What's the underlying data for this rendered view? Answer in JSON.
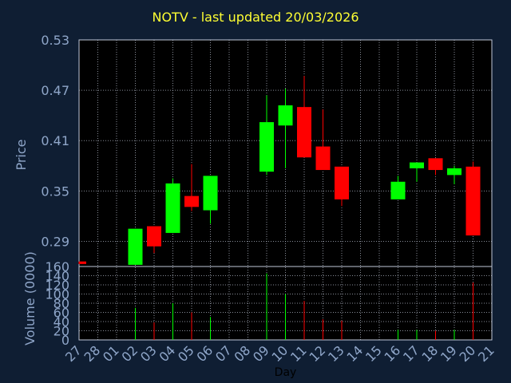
{
  "title": "NOTV - last updated 20/03/2026",
  "colors": {
    "background": "#0f1e33",
    "plot_background": "#000000",
    "grid": "#c0c8d8",
    "axis_text": "#8fa6c9",
    "title": "#ffff33",
    "up": "#00ff00",
    "down": "#ff0000"
  },
  "chart_data": [
    {
      "type": "candlestick",
      "ylabel": "Price",
      "ylim": [
        0.26,
        0.53
      ],
      "yticks": [
        "0.53",
        "0.47",
        "0.41",
        "0.35",
        "0.29"
      ],
      "ytick_values": [
        0.53,
        0.47,
        0.41,
        0.35,
        0.29
      ],
      "grid": true,
      "days": [
        "27",
        "28",
        "01",
        "02",
        "03",
        "04",
        "05",
        "06",
        "07",
        "08",
        "09",
        "10",
        "11",
        "12",
        "13",
        "14",
        "15",
        "16",
        "17",
        "18",
        "19",
        "20",
        "21"
      ],
      "candles": [
        {
          "day": "27",
          "open": 0.266,
          "close": 0.263,
          "high": 0.266,
          "low": 0.263
        },
        {
          "day": "02",
          "open": 0.262,
          "close": 0.305,
          "high": 0.305,
          "low": 0.262
        },
        {
          "day": "03",
          "open": 0.308,
          "close": 0.284,
          "high": 0.308,
          "low": 0.276
        },
        {
          "day": "04",
          "open": 0.3,
          "close": 0.359,
          "high": 0.365,
          "low": 0.3
        },
        {
          "day": "05",
          "open": 0.344,
          "close": 0.331,
          "high": 0.382,
          "low": 0.326
        },
        {
          "day": "06",
          "open": 0.327,
          "close": 0.368,
          "high": 0.368,
          "low": 0.311
        },
        {
          "day": "09",
          "open": 0.373,
          "close": 0.432,
          "high": 0.464,
          "low": 0.369
        },
        {
          "day": "10",
          "open": 0.428,
          "close": 0.452,
          "high": 0.472,
          "low": 0.377
        },
        {
          "day": "11",
          "open": 0.45,
          "close": 0.39,
          "high": 0.487,
          "low": 0.39
        },
        {
          "day": "12",
          "open": 0.403,
          "close": 0.375,
          "high": 0.447,
          "low": 0.375
        },
        {
          "day": "13",
          "open": 0.379,
          "close": 0.34,
          "high": 0.379,
          "low": 0.332
        },
        {
          "day": "16",
          "open": 0.34,
          "close": 0.361,
          "high": 0.368,
          "low": 0.34
        },
        {
          "day": "17",
          "open": 0.377,
          "close": 0.384,
          "high": 0.384,
          "low": 0.361
        },
        {
          "day": "18",
          "open": 0.389,
          "close": 0.375,
          "high": 0.389,
          "low": 0.369
        },
        {
          "day": "19",
          "open": 0.369,
          "close": 0.377,
          "high": 0.38,
          "low": 0.358
        },
        {
          "day": "20",
          "open": 0.379,
          "close": 0.297,
          "high": 0.385,
          "low": 0.297
        }
      ]
    },
    {
      "type": "bar",
      "ylabel": "Volume (0000)",
      "xlabel": "Day",
      "ylim": [
        0,
        160
      ],
      "yticks": [
        "160",
        "140",
        "120",
        "100",
        "80",
        "60",
        "40",
        "20",
        "0"
      ],
      "ytick_values": [
        160,
        140,
        120,
        100,
        80,
        60,
        40,
        20,
        0
      ],
      "categories": [
        "27",
        "02",
        "03",
        "04",
        "05",
        "06",
        "09",
        "10",
        "11",
        "12",
        "13",
        "16",
        "17",
        "18",
        "19",
        "20"
      ],
      "values": [
        0,
        70,
        38,
        80,
        60,
        50,
        145,
        100,
        85,
        45,
        42,
        22,
        22,
        20,
        22,
        125
      ],
      "colors": [
        "red",
        "green",
        "red",
        "green",
        "red",
        "green",
        "green",
        "green",
        "red",
        "red",
        "red",
        "green",
        "green",
        "red",
        "green",
        "red"
      ]
    }
  ]
}
